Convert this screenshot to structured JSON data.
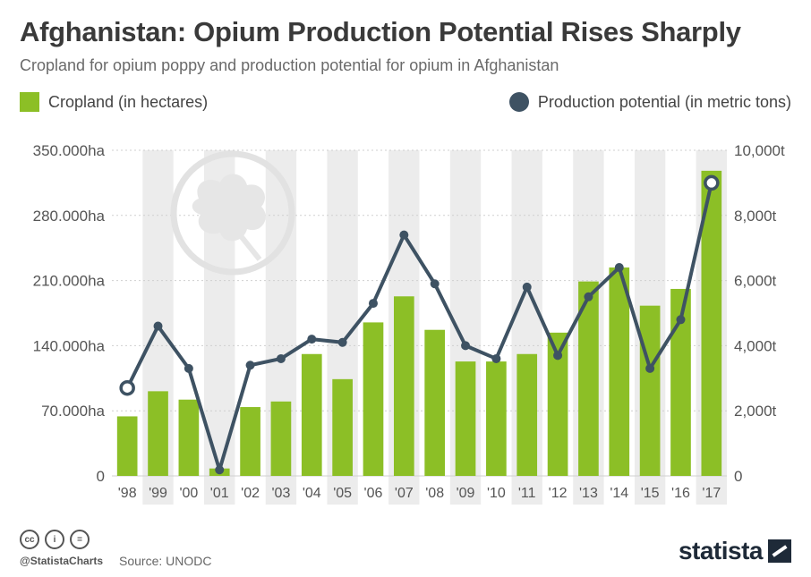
{
  "title": "Afghanistan: Opium Production Potential Rises Sharply",
  "subtitle": "Cropland for opium poppy and production potential for opium in Afghanistan",
  "legend": {
    "bar": "Cropland (in hectares)",
    "line": "Production potential (in metric tons)"
  },
  "footer": {
    "handle": "@StatistaCharts",
    "source": "Source: UNODC",
    "brand": "statista",
    "icons": [
      "cc-icon",
      "by-icon",
      "nd-icon"
    ]
  },
  "colors": {
    "bar": "#8cbf26",
    "line": "#3e5263",
    "band": "#ececec"
  },
  "chart_data": {
    "type": "bar",
    "categories": [
      "'98",
      "'99",
      "'00",
      "'01",
      "'02",
      "'03",
      "'04",
      "'05",
      "'06",
      "'07",
      "'08",
      "'09",
      "'10",
      "'11",
      "'12",
      "'13",
      "'14",
      "'15",
      "'16",
      "'17"
    ],
    "series": [
      {
        "name": "Cropland (in hectares)",
        "type": "bar",
        "axis": "left",
        "values": [
          64000,
          91000,
          82000,
          8000,
          74000,
          80000,
          131000,
          104000,
          165000,
          193000,
          157000,
          123000,
          123000,
          131000,
          154000,
          209000,
          224000,
          183000,
          201000,
          328000
        ]
      },
      {
        "name": "Production potential (in metric tons)",
        "type": "line",
        "axis": "right",
        "values": [
          2700,
          4600,
          3300,
          185,
          3400,
          3600,
          4200,
          4100,
          5300,
          7400,
          5900,
          4000,
          3600,
          5800,
          3700,
          5500,
          6400,
          3300,
          4800,
          9000
        ]
      }
    ],
    "y_left": {
      "ylim": [
        0,
        350000
      ],
      "ticks": [
        0,
        70000,
        140000,
        210000,
        280000,
        350000
      ],
      "tick_labels": [
        "0",
        "70.000ha",
        "140.000ha",
        "210.000ha",
        "280.000ha",
        "350.000ha"
      ]
    },
    "y_right": {
      "ylim": [
        0,
        10000
      ],
      "ticks": [
        0,
        2000,
        4000,
        6000,
        8000,
        10000
      ],
      "tick_labels": [
        "0",
        "2,000t",
        "4,000t",
        "6,000t",
        "8,000t",
        "10,000t"
      ]
    },
    "grid": true,
    "legend_position": "top"
  }
}
